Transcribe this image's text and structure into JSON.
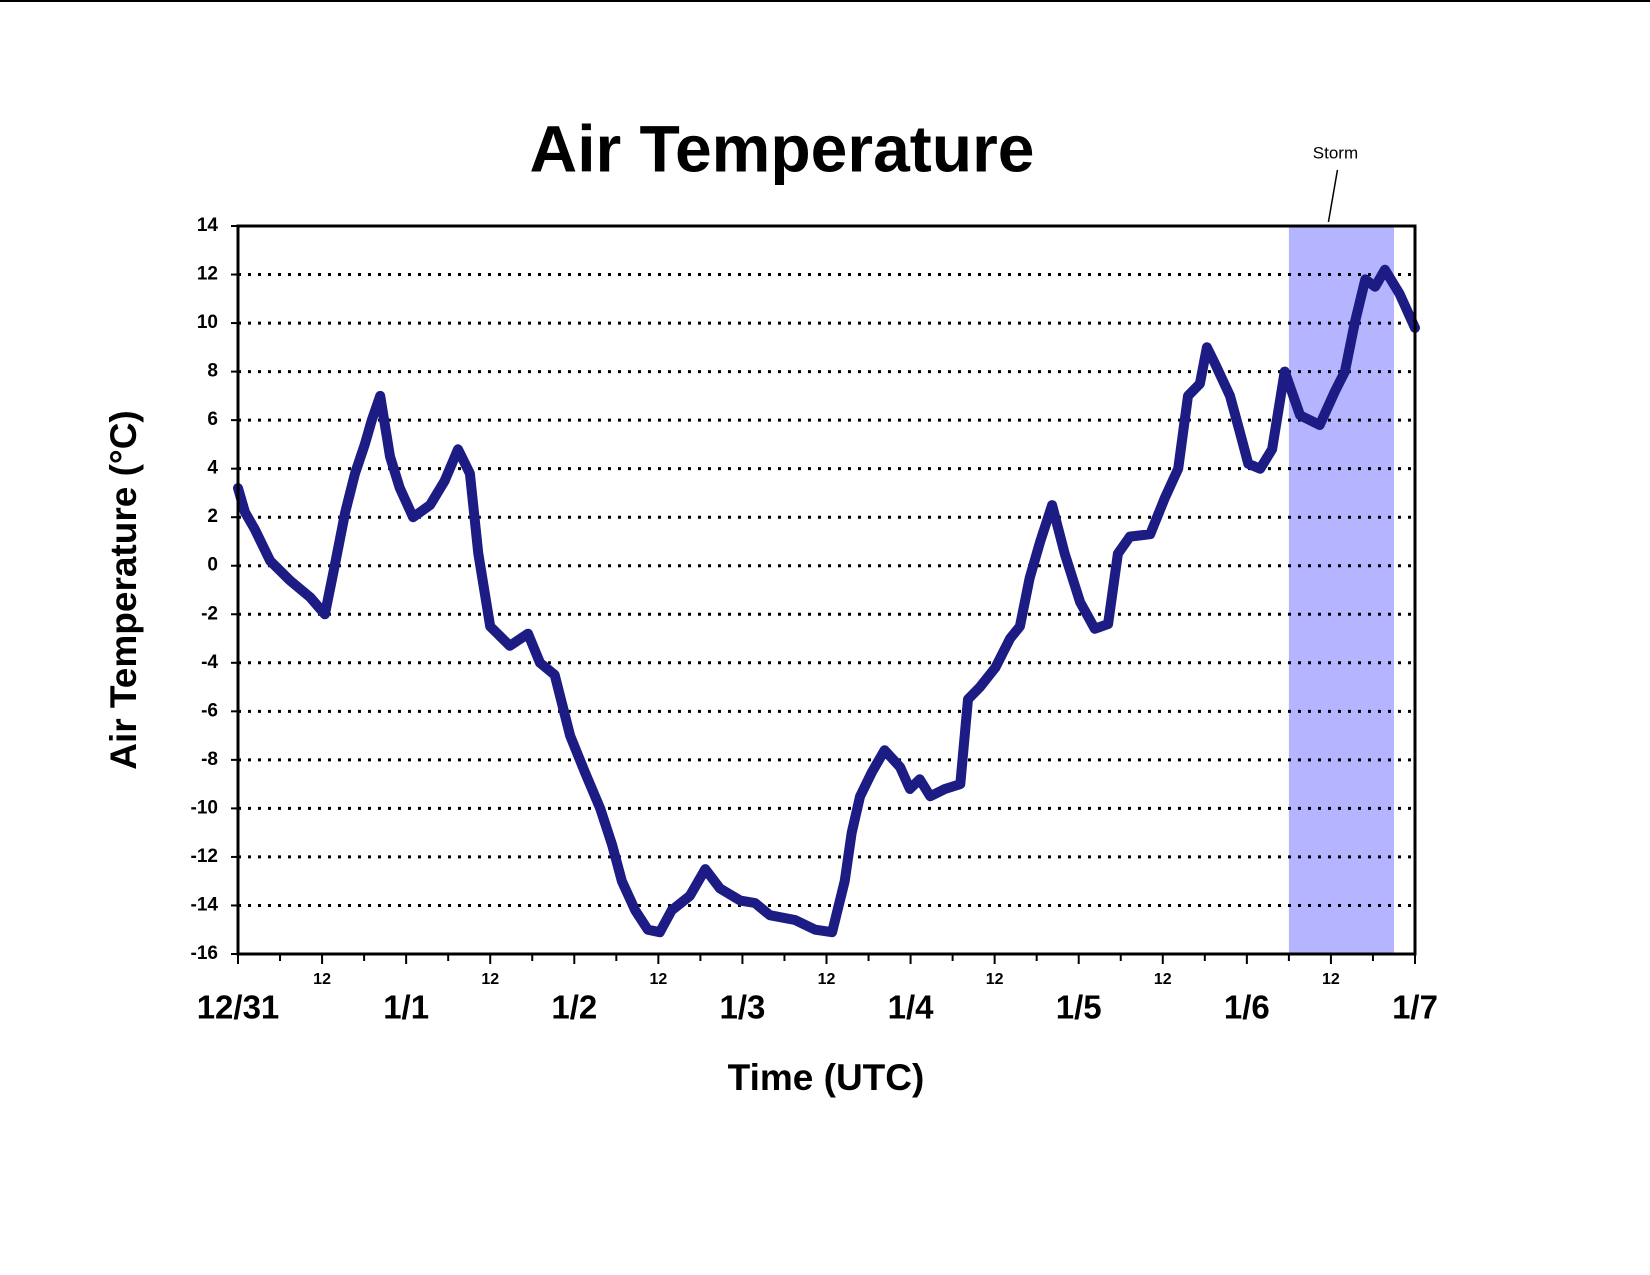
{
  "chart_data": {
    "type": "line",
    "title": "Air Temperature",
    "x_label": "Time (UTC)",
    "y_label": "Air Temperature (°C)",
    "xlim": [
      0,
      168
    ],
    "xticks": [
      {
        "value": 0,
        "label": "12/31"
      },
      {
        "value": 12,
        "label": "12"
      },
      {
        "value": 24,
        "label": "1/1"
      },
      {
        "value": 36,
        "label": "12"
      },
      {
        "value": 48,
        "label": "1/2"
      },
      {
        "value": 60,
        "label": "12"
      },
      {
        "value": 72,
        "label": "1/3"
      },
      {
        "value": 84,
        "label": "12"
      },
      {
        "value": 96,
        "label": "1/4"
      },
      {
        "value": 108,
        "label": "12"
      },
      {
        "value": 120,
        "label": "1/5"
      },
      {
        "value": 132,
        "label": "12"
      },
      {
        "value": 144,
        "label": "1/6"
      },
      {
        "value": 156,
        "label": "12"
      },
      {
        "value": 168,
        "label": "1/7"
      }
    ],
    "ylim": [
      -16,
      14
    ],
    "yticks": [
      -16,
      -14,
      -12,
      -10,
      -8,
      -6,
      -4,
      -2,
      0,
      2,
      4,
      6,
      8,
      10,
      12,
      14
    ],
    "grid": true,
    "shaded_regions": [
      {
        "label": "Storm",
        "xlim": [
          150,
          165
        ],
        "color": "#b4b4ff"
      }
    ],
    "x": [
      0,
      1,
      2.4,
      4.6,
      7.4,
      10.3,
      12.4,
      13.8,
      15.3,
      16.7,
      18.1,
      19.1,
      20.3,
      21.7,
      23.1,
      25,
      27.4,
      29.5,
      31.4,
      33.1,
      34.3,
      36,
      38.8,
      41.4,
      43.1,
      45.2,
      47.4,
      49.5,
      51.7,
      53.4,
      54.8,
      56.7,
      58.5,
      60.2,
      61.9,
      64.5,
      66.7,
      68.8,
      71.7,
      73.8,
      75.9,
      79.5,
      82.4,
      84.8,
      86.6,
      87.6,
      88.8,
      90.5,
      92.3,
      94.5,
      95.9,
      97.3,
      98.8,
      100.9,
      103.1,
      104.2,
      105.9,
      108.1,
      110.2,
      111.6,
      113,
      114.5,
      116.2,
      118,
      120.2,
      122.3,
      124.2,
      125.6,
      127.3,
      130.2,
      132.3,
      134.2,
      135.6,
      137.3,
      138.3,
      139.5,
      141.6,
      143,
      144.2,
      145.9,
      147.6,
      149.4,
      151.6,
      154.4,
      156.6,
      158,
      159.4,
      160.9,
      162.3,
      163.7,
      165.8,
      168
    ],
    "series": [
      {
        "color": "#1c1c84",
        "values": [
          3.2,
          2.2,
          1.5,
          0.2,
          -0.6,
          -1.3,
          -2.0,
          0,
          2.2,
          3.8,
          5.0,
          6.0,
          7.0,
          4.5,
          3.2,
          2.0,
          2.5,
          3.5,
          4.8,
          3.8,
          0.5,
          -2.5,
          -3.3,
          -2.8,
          -4.0,
          -4.5,
          -7.0,
          -8.5,
          -10.0,
          -11.5,
          -13.0,
          -14.2,
          -15.0,
          -15.1,
          -14.2,
          -13.6,
          -12.5,
          -13.3,
          -13.8,
          -13.9,
          -14.4,
          -14.6,
          -15.0,
          -15.1,
          -13.0,
          -11.0,
          -9.5,
          -8.5,
          -7.6,
          -8.3,
          -9.2,
          -8.8,
          -9.5,
          -9.2,
          -9.0,
          -5.5,
          -5.0,
          -4.2,
          -3.0,
          -2.5,
          -0.5,
          1.0,
          2.5,
          0.5,
          -1.5,
          -2.6,
          -2.4,
          0.5,
          1.2,
          1.3,
          2.8,
          4.0,
          7.0,
          7.5,
          9.0,
          8.3,
          7.0,
          5.5,
          4.2,
          4.0,
          4.8,
          8.0,
          6.2,
          5.8,
          7.2,
          8.0,
          10.0,
          11.8,
          11.5,
          12.2,
          11.2,
          9.8
        ]
      }
    ]
  }
}
